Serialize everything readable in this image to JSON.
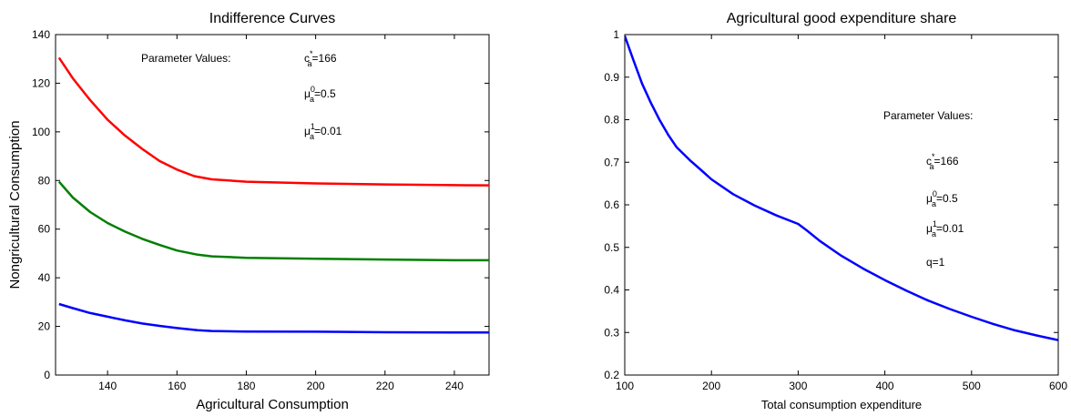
{
  "chart_data": [
    {
      "type": "line",
      "title": "Indifference Curves",
      "xlabel": "Agricultural Consumption",
      "ylabel": "Nongricultural Consumption",
      "xlim": [
        125,
        250
      ],
      "ylim": [
        0,
        140
      ],
      "xticks": [
        140,
        160,
        180,
        200,
        220,
        240
      ],
      "yticks": [
        0,
        20,
        40,
        60,
        80,
        100,
        120,
        140
      ],
      "xtick_labels": [
        "140",
        "160",
        "180",
        "200",
        "220",
        "240"
      ],
      "ytick_labels": [
        "0",
        "20",
        "40",
        "60",
        "80",
        "100",
        "120",
        "140"
      ],
      "grid": false,
      "annotations": {
        "heading": "Parameter Values:",
        "lines": [
          {
            "base": "c",
            "sub": "a",
            "sup": "*",
            "value": "=166"
          },
          {
            "base": "μ",
            "sub": "a",
            "sup": "0",
            "value": "=0.5"
          },
          {
            "base": "μ",
            "sub": "a",
            "sup": "1",
            "value": "=0.01"
          }
        ]
      },
      "series": [
        {
          "color": "#ff0000",
          "points": [
            [
              126,
              130.5
            ],
            [
              130,
              122
            ],
            [
              135,
              113
            ],
            [
              140,
              105
            ],
            [
              145,
              98.5
            ],
            [
              150,
              93
            ],
            [
              155,
              88
            ],
            [
              160,
              84.5
            ],
            [
              165,
              81.8
            ],
            [
              170,
              80.5
            ],
            [
              180,
              79.5
            ],
            [
              200,
              78.8
            ],
            [
              220,
              78.4
            ],
            [
              240,
              78.1
            ],
            [
              250,
              78.0
            ]
          ]
        },
        {
          "color": "#007f00",
          "points": [
            [
              126,
              79.5
            ],
            [
              130,
              73
            ],
            [
              135,
              67
            ],
            [
              140,
              62.5
            ],
            [
              145,
              59
            ],
            [
              150,
              56
            ],
            [
              155,
              53.5
            ],
            [
              160,
              51.2
            ],
            [
              166,
              49.5
            ],
            [
              170,
              48.8
            ],
            [
              180,
              48.2
            ],
            [
              200,
              47.8
            ],
            [
              220,
              47.5
            ],
            [
              240,
              47.2
            ],
            [
              250,
              47.2
            ]
          ]
        },
        {
          "color": "#0000ff",
          "points": [
            [
              126,
              29.2
            ],
            [
              130,
              27.5
            ],
            [
              135,
              25.5
            ],
            [
              140,
              24
            ],
            [
              145,
              22.5
            ],
            [
              150,
              21.2
            ],
            [
              155,
              20.2
            ],
            [
              160,
              19.3
            ],
            [
              166,
              18.4
            ],
            [
              170,
              18.1
            ],
            [
              180,
              17.9
            ],
            [
              200,
              17.8
            ],
            [
              220,
              17.6
            ],
            [
              240,
              17.5
            ],
            [
              250,
              17.5
            ]
          ]
        }
      ]
    },
    {
      "type": "line",
      "title": "Agricultural good expenditure share",
      "xlabel": "Total consumption expenditure",
      "ylabel": "",
      "xlim": [
        100,
        600
      ],
      "ylim": [
        0.2,
        1.0
      ],
      "xticks": [
        100,
        200,
        300,
        400,
        500,
        600
      ],
      "yticks": [
        0.2,
        0.3,
        0.4,
        0.5,
        0.6,
        0.7,
        0.8,
        0.9,
        1.0
      ],
      "xtick_labels": [
        "100",
        "200",
        "300",
        "400",
        "500",
        "600"
      ],
      "ytick_labels": [
        "0.2",
        "0.3",
        "0.4",
        "0.5",
        "0.6",
        "0.7",
        "0.8",
        "0.9",
        "1"
      ],
      "grid": false,
      "annotations": {
        "heading": "Parameter Values:",
        "lines": [
          {
            "base": "c",
            "sub": "a",
            "sup": "*",
            "value": "=166"
          },
          {
            "base": "μ",
            "sub": "a",
            "sup": "0",
            "value": "=0.5"
          },
          {
            "base": "μ",
            "sub": "a",
            "sup": "1",
            "value": "=0.01"
          },
          {
            "base": "q=1",
            "sub": "",
            "sup": "",
            "value": ""
          }
        ]
      },
      "series": [
        {
          "color": "#0000ff",
          "points": [
            [
              100,
              0.997
            ],
            [
              110,
              0.94
            ],
            [
              120,
              0.885
            ],
            [
              130,
              0.84
            ],
            [
              140,
              0.8
            ],
            [
              150,
              0.765
            ],
            [
              160,
              0.735
            ],
            [
              175,
              0.705
            ],
            [
              190,
              0.678
            ],
            [
              200,
              0.66
            ],
            [
              225,
              0.625
            ],
            [
              250,
              0.598
            ],
            [
              275,
              0.575
            ],
            [
              300,
              0.555
            ],
            [
              310,
              0.54
            ],
            [
              325,
              0.515
            ],
            [
              350,
              0.48
            ],
            [
              375,
              0.45
            ],
            [
              400,
              0.423
            ],
            [
              425,
              0.398
            ],
            [
              450,
              0.375
            ],
            [
              475,
              0.355
            ],
            [
              500,
              0.337
            ],
            [
              525,
              0.32
            ],
            [
              550,
              0.305
            ],
            [
              575,
              0.293
            ],
            [
              600,
              0.282
            ]
          ]
        }
      ]
    }
  ]
}
